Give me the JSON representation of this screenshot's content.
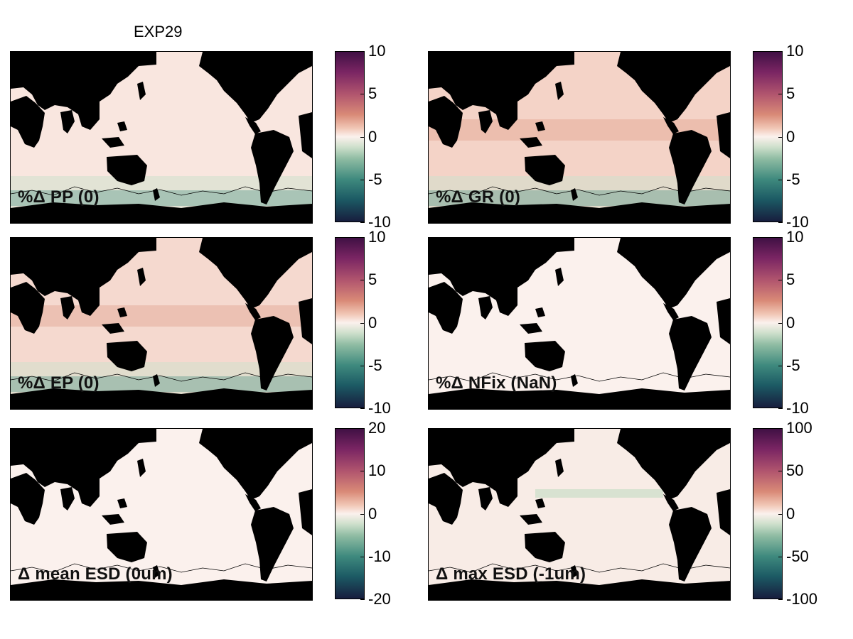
{
  "figure": {
    "title": "EXP29"
  },
  "panels": [
    {
      "label": "%Δ PP (0)",
      "ticks": [
        "10",
        "5",
        "0",
        "-5",
        "-10"
      ],
      "fill": "#f9e6df"
    },
    {
      "label": "%Δ GR (0)",
      "ticks": [
        "10",
        "5",
        "0",
        "-5",
        "-10"
      ],
      "fill": "#f4d3c7"
    },
    {
      "label": "%Δ EP (0)",
      "ticks": [
        "10",
        "5",
        "0",
        "-5",
        "-10"
      ],
      "fill": "#f5d9cf"
    },
    {
      "label": "%Δ NFix (NaN)",
      "ticks": [
        "10",
        "5",
        "0",
        "-5",
        "-10"
      ],
      "fill": "#fbf1ed"
    },
    {
      "label": "Δ mean ESD (0um)",
      "ticks": [
        "20",
        "10",
        "0",
        "-10",
        "-20"
      ],
      "fill": "#fbf1ed"
    },
    {
      "label": "Δ max ESD (-1um)",
      "ticks": [
        "100",
        "50",
        "0",
        "-50",
        "-100"
      ],
      "fill": "#f8ece6"
    }
  ],
  "colors": {
    "land": "#000000",
    "neutral": "#fbf1ed",
    "positive_max": "#401044",
    "negative_max": "#171d3e"
  }
}
